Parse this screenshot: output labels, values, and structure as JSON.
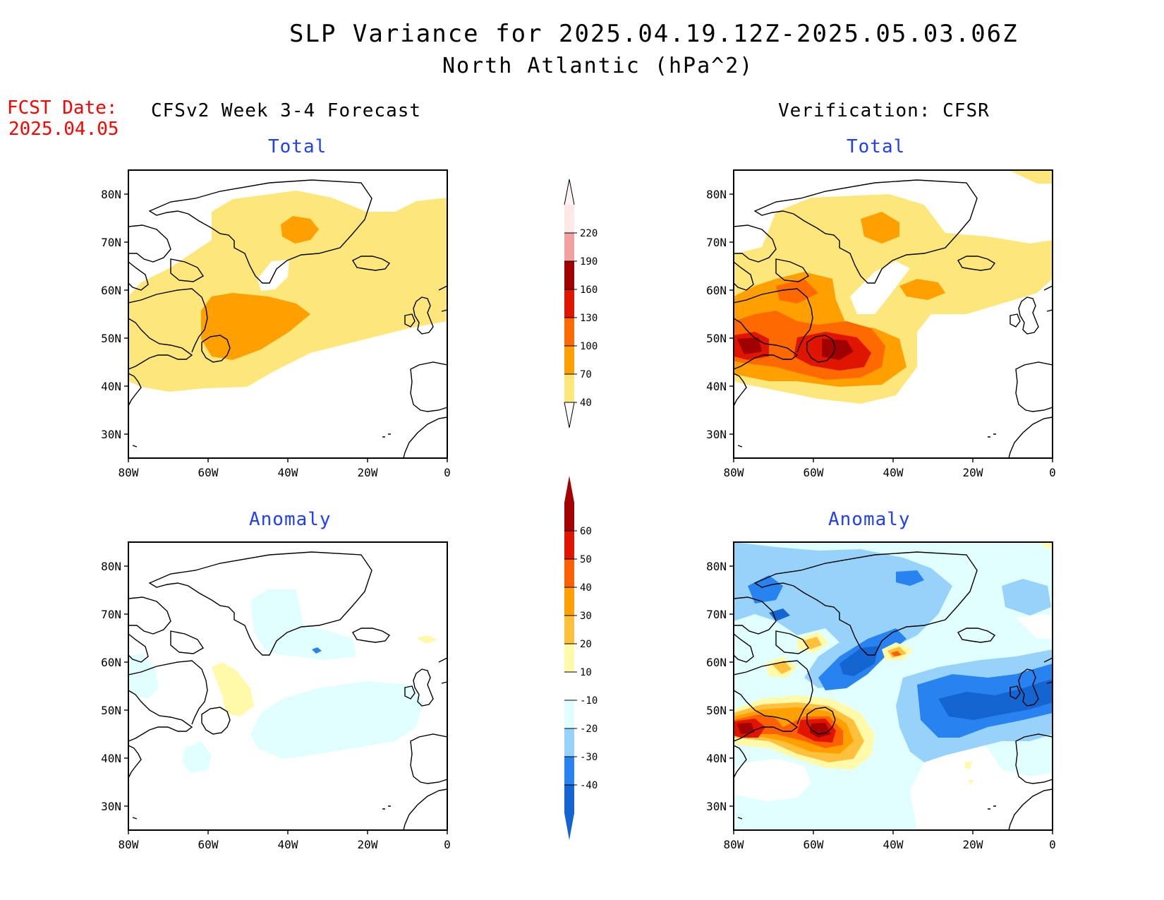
{
  "title_line1": "SLP Variance for 2025.04.19.12Z-2025.05.03.06Z",
  "title_line2": "North Atlantic (hPa^2)",
  "fcst_label": "FCST Date:",
  "fcst_date": "2025.04.05",
  "columns": {
    "forecast": "CFSv2 Week 3-4 Forecast",
    "verification": "Verification: CFSR"
  },
  "panel_titles": {
    "total": "Total",
    "anomaly": "Anomaly"
  },
  "axes": {
    "lon_labels": [
      "80W",
      "60W",
      "40W",
      "20W",
      "0"
    ],
    "lat_labels": [
      "30N",
      "40N",
      "50N",
      "60N",
      "70N",
      "80N"
    ],
    "lon_range": [
      -80,
      0
    ],
    "lat_range": [
      25,
      85
    ]
  },
  "colorbars": {
    "total": {
      "labels": [
        "40",
        "70",
        "100",
        "130",
        "160",
        "190",
        "220"
      ],
      "colors": [
        "#fde67a",
        "#ff9f00",
        "#ff6a00",
        "#e01500",
        "#a00000",
        "#f4a0a0",
        "#fde8e8"
      ]
    },
    "anomaly": {
      "labels": [
        "-40",
        "-30",
        "-20",
        "-10",
        "10",
        "20",
        "30",
        "40",
        "50",
        "60"
      ],
      "colors": [
        "#1464d2",
        "#2882f0",
        "#96d2fa",
        "#e1ffff",
        "#ffffff",
        "#fffaaa",
        "#ffc03c",
        "#ffa000",
        "#ff6000",
        "#e11400",
        "#a50000"
      ]
    }
  },
  "chart_data": [
    {
      "type": "heatmap",
      "panel": "CFSv2 Week 3-4 Forecast - Total",
      "units": "hPa^2",
      "levels": [
        40,
        70,
        100,
        130,
        160,
        190,
        220
      ],
      "features": [
        {
          "level": "40-70",
          "region": "broad band 40N-80N, 80W-0 across North Atlantic and Greenland"
        },
        {
          "level": "70-100",
          "region": "centered near 50N 50W (Newfoundland)"
        },
        {
          "level": "70-100",
          "region": "small area near 75N 40W over Greenland"
        }
      ]
    },
    {
      "type": "heatmap",
      "panel": "Verification: CFSR - Total",
      "units": "hPa^2",
      "levels": [
        40,
        70,
        100,
        130,
        160,
        190,
        220
      ],
      "features": [
        {
          "level": "40-70",
          "region": "broad band 40N-80N across basin"
        },
        {
          "level": "70-100",
          "region": "Labrador Sea 55N-62N 60W-75W; small cell 60N 35W; small cell 75N 40W"
        },
        {
          "level": "100-130",
          "region": "45N-52N 50W-80W"
        },
        {
          "level": "130-160",
          "region": "around 48N 55W and 48N 75W"
        },
        {
          "level": "160-190",
          "region": "peak near 48N 52W and 48N 75W"
        }
      ]
    },
    {
      "type": "heatmap",
      "panel": "CFSv2 Week 3-4 Forecast - Anomaly",
      "units": "hPa^2",
      "levels": [
        -40,
        -30,
        -20,
        -10,
        10,
        20,
        30,
        40,
        50,
        60
      ],
      "features": [
        {
          "level": "-20 to -10",
          "region": "weak negative patches 40N-55N 15W-45W, 45N-60N 70W-80W, 63N-72N 35W-45W"
        },
        {
          "level": "10-20",
          "region": "small positive near 52N 55W and 63N 5W"
        }
      ]
    },
    {
      "type": "heatmap",
      "panel": "Verification: CFSR - Anomaly",
      "units": "hPa^2",
      "levels": [
        -40,
        -30,
        -20,
        -10,
        10,
        20,
        30,
        40,
        50,
        60
      ],
      "features": [
        {
          "level": "40-60+",
          "region": "positive max near 48N 52W and 48N 75W"
        },
        {
          "level": "20-40",
          "region": "positive near 60N 65W and 60N 35W"
        },
        {
          "level": "-40 to -20",
          "region": "negative band 45N-55N 30W-0; 55N-65N 45W-55W"
        },
        {
          "level": "-20 to -10",
          "region": "negative over Greenland and Davis Strait 65N-85N"
        }
      ]
    }
  ]
}
